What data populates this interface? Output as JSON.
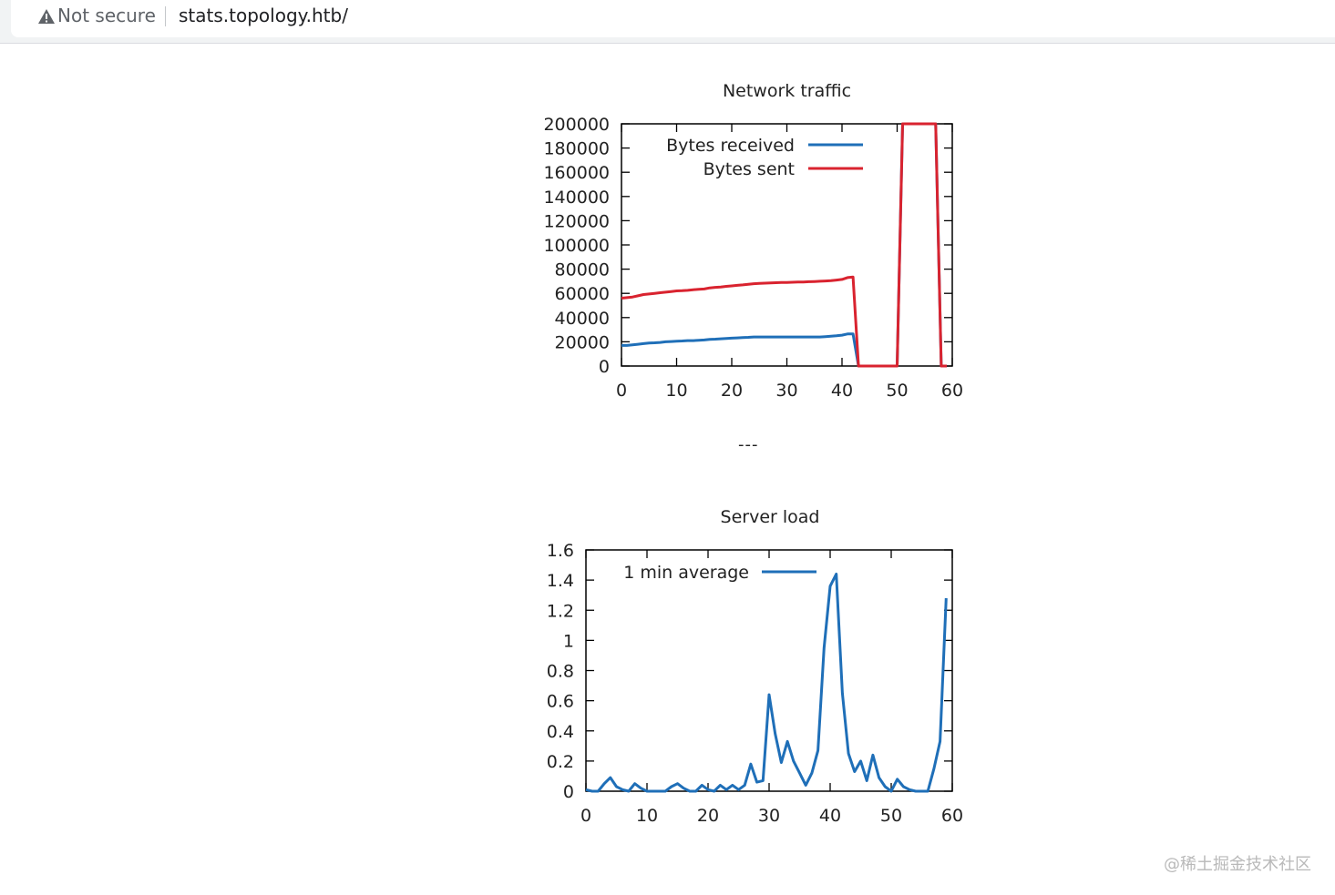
{
  "browser": {
    "security_icon": "warning-triangle-icon",
    "security_label": "Not secure",
    "url": "stats.topology.htb/"
  },
  "separator_text": "---",
  "watermark": "@稀土掘金技术社区",
  "colors": {
    "received": "#1f6fb8",
    "sent": "#d9232f",
    "load": "#1f6fb8",
    "axis": "#000000"
  },
  "chart_data": [
    {
      "type": "line",
      "title": "Network traffic",
      "xlabel": "",
      "ylabel": "",
      "xlim": [
        0,
        60
      ],
      "ylim": [
        0,
        200000
      ],
      "xticks": [
        "0",
        "10",
        "20",
        "30",
        "40",
        "50",
        "60"
      ],
      "yticks": [
        "0",
        "20000",
        "40000",
        "60000",
        "80000",
        "100000",
        "120000",
        "140000",
        "160000",
        "180000",
        "200000"
      ],
      "legend_position": "top-left-inside",
      "grid": false,
      "x": [
        0,
        1,
        2,
        3,
        4,
        5,
        6,
        7,
        8,
        9,
        10,
        11,
        12,
        13,
        14,
        15,
        16,
        17,
        18,
        19,
        20,
        21,
        22,
        23,
        24,
        25,
        26,
        27,
        28,
        29,
        30,
        31,
        32,
        33,
        34,
        35,
        36,
        37,
        38,
        39,
        40,
        41,
        42,
        43,
        44,
        45,
        46,
        47,
        48,
        49,
        50,
        51,
        52,
        53,
        54,
        55,
        56,
        57,
        58,
        59
      ],
      "series": [
        {
          "name": "Bytes received",
          "color": "#1f6fb8",
          "values": [
            17000,
            17000,
            17500,
            18000,
            18500,
            19000,
            19200,
            19500,
            20000,
            20200,
            20500,
            20700,
            21000,
            21000,
            21200,
            21500,
            22000,
            22200,
            22500,
            22700,
            23000,
            23200,
            23500,
            23700,
            24000,
            24000,
            24000,
            24000,
            24000,
            24000,
            24000,
            24000,
            24000,
            24000,
            24000,
            24000,
            24000,
            24300,
            24600,
            25000,
            25500,
            26500,
            26500,
            0,
            0,
            0,
            0,
            0,
            0,
            0,
            0,
            200000,
            200000,
            200000,
            200000,
            200000,
            200000,
            200000,
            0,
            0
          ]
        },
        {
          "name": "Bytes sent",
          "color": "#d9232f",
          "values": [
            56000,
            56500,
            57000,
            58000,
            59000,
            59500,
            60000,
            60500,
            61000,
            61500,
            62000,
            62200,
            62500,
            63000,
            63300,
            63600,
            64500,
            65000,
            65300,
            65800,
            66200,
            66600,
            67000,
            67500,
            68000,
            68200,
            68400,
            68600,
            68800,
            69000,
            69000,
            69200,
            69300,
            69400,
            69600,
            69800,
            70000,
            70200,
            70500,
            71000,
            71500,
            73000,
            73500,
            0,
            0,
            0,
            0,
            0,
            0,
            0,
            0,
            200000,
            200000,
            200000,
            200000,
            200000,
            200000,
            200000,
            0,
            0
          ]
        }
      ]
    },
    {
      "type": "line",
      "title": "Server load",
      "xlabel": "",
      "ylabel": "",
      "xlim": [
        0,
        60
      ],
      "ylim": [
        0,
        1.6
      ],
      "xticks": [
        "0",
        "10",
        "20",
        "30",
        "40",
        "50",
        "60"
      ],
      "yticks": [
        "0",
        "0.2",
        "0.4",
        "0.6",
        "0.8",
        "1",
        "1.2",
        "1.4",
        "1.6"
      ],
      "legend_position": "top-left-inside",
      "grid": false,
      "x": [
        0,
        1,
        2,
        3,
        4,
        5,
        6,
        7,
        8,
        9,
        10,
        11,
        12,
        13,
        14,
        15,
        16,
        17,
        18,
        19,
        20,
        21,
        22,
        23,
        24,
        25,
        26,
        27,
        28,
        29,
        30,
        31,
        32,
        33,
        34,
        35,
        36,
        37,
        38,
        39,
        40,
        41,
        42,
        43,
        44,
        45,
        46,
        47,
        48,
        49,
        50,
        51,
        52,
        53,
        54,
        55,
        56,
        57,
        58,
        59
      ],
      "series": [
        {
          "name": "1 min average",
          "color": "#1f6fb8",
          "values": [
            0.01,
            0,
            0,
            0.05,
            0.09,
            0.03,
            0.01,
            0,
            0.05,
            0.02,
            0,
            0,
            0,
            0,
            0.03,
            0.05,
            0.02,
            0,
            0,
            0.04,
            0.01,
            0,
            0.04,
            0.01,
            0.04,
            0.01,
            0.04,
            0.18,
            0.06,
            0.07,
            0.64,
            0.38,
            0.19,
            0.33,
            0.2,
            0.12,
            0.04,
            0.12,
            0.27,
            0.95,
            1.36,
            1.44,
            0.65,
            0.25,
            0.13,
            0.2,
            0.07,
            0.24,
            0.09,
            0.03,
            0,
            0.08,
            0.03,
            0.01,
            0,
            0,
            0,
            0.15,
            0.33,
            1.28
          ]
        }
      ]
    }
  ]
}
